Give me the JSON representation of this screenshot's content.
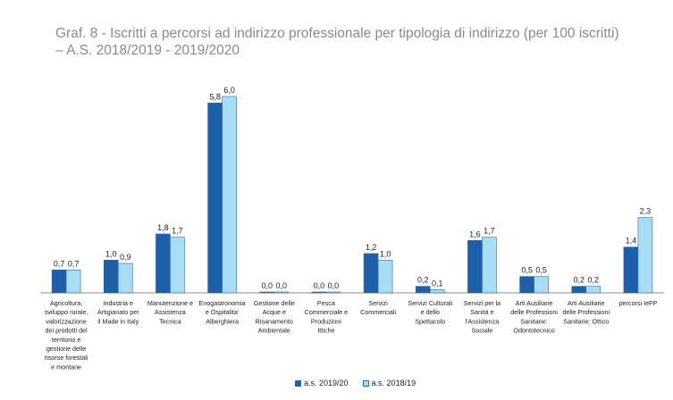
{
  "title": "Graf. 8 - Iscritti a percorsi ad indirizzo professionale per tipologia di indirizzo (per 100 iscritti) – A.S. 2018/2019 - 2019/2020",
  "colors": {
    "series1": "#1d5fa8",
    "series2": "#a9dcf5",
    "axis": "#888888"
  },
  "chart_data": {
    "type": "bar",
    "title": "Graf. 8 - Iscritti a percorsi ad indirizzo professionale per tipologia di indirizzo (per 100 iscritti) – A.S. 2018/2019 - 2019/2020",
    "categories": [
      [
        "Agricoltura,",
        "sviluppo rurale,",
        "valorizzazione",
        "dei prodotti del",
        "territorio e",
        "gestione delle",
        "risorse forestali",
        "e montane"
      ],
      [
        "Industria e",
        "Artigianato per",
        "il Made in Italy"
      ],
      [
        "Manutenzione e",
        "Assistenza",
        "Tecnica"
      ],
      [
        "Enogastronomia",
        "e Ospitalita'",
        "Alberghiera"
      ],
      [
        "Gestione delle",
        "Acque e",
        "Risanamento",
        "Ambientale"
      ],
      [
        "Pesca",
        "Commerciale e",
        "Produzioni",
        "Ittiche"
      ],
      [
        "Servizi",
        "Commerciali"
      ],
      [
        "Servizi Culturali",
        "e dello",
        "Spettacolo"
      ],
      [
        "Servizi per la",
        "Sanità e",
        "l'Assistenza",
        "Sociale"
      ],
      [
        "Arti Ausiliarie",
        "delle Professioni",
        "Sanitarie:",
        "Odontotecnico"
      ],
      [
        "Arti Ausiliarie",
        "delle Professioni",
        "Sanitarie: Ottico"
      ],
      [
        "percorsi IeFP"
      ]
    ],
    "series": [
      {
        "name": "a.s. 2019/20",
        "values": [
          0.7,
          1.0,
          1.8,
          5.8,
          0.0,
          0.0,
          1.2,
          0.2,
          1.6,
          0.5,
          0.2,
          1.4
        ],
        "labels": [
          "0,7",
          "1,0",
          "1,8",
          "5,8",
          "0,0",
          "0,0",
          "1,2",
          "0,2",
          "1,6",
          "0,5",
          "0,2",
          "1,4"
        ]
      },
      {
        "name": "a.s. 2018/19",
        "values": [
          0.7,
          0.9,
          1.7,
          6.0,
          0.0,
          0.0,
          1.0,
          0.1,
          1.7,
          0.5,
          0.2,
          2.3
        ],
        "labels": [
          "0,7",
          "0,9",
          "1,7",
          "6,0",
          "0,0",
          "0,0",
          "1,0",
          "0,1",
          "1,7",
          "0,5",
          "0,2",
          "2,3"
        ]
      }
    ],
    "ylim": [
      0,
      6.0
    ],
    "grid": false,
    "legend_position": "bottom"
  }
}
